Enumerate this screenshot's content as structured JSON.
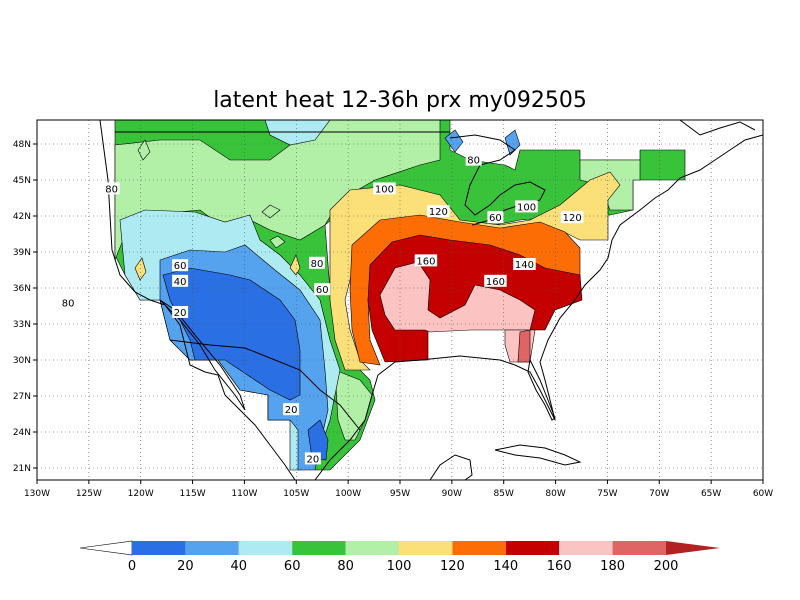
{
  "title": "latent heat 12-36h prx my092505",
  "map": {
    "lon_range": [
      -130,
      -60
    ],
    "lat_range": [
      20,
      50
    ],
    "lon_ticks": [
      {
        "value": -130,
        "label": "130W"
      },
      {
        "value": -125,
        "label": "125W"
      },
      {
        "value": -120,
        "label": "120W"
      },
      {
        "value": -115,
        "label": "115W"
      },
      {
        "value": -110,
        "label": "110W"
      },
      {
        "value": -105,
        "label": "105W"
      },
      {
        "value": -100,
        "label": "100W"
      },
      {
        "value": -95,
        "label": "95W"
      },
      {
        "value": -90,
        "label": "90W"
      },
      {
        "value": -85,
        "label": "85W"
      },
      {
        "value": -80,
        "label": "80W"
      },
      {
        "value": -75,
        "label": "75W"
      },
      {
        "value": -70,
        "label": "70W"
      },
      {
        "value": -65,
        "label": "65W"
      },
      {
        "value": -60,
        "label": "60W"
      }
    ],
    "lat_ticks": [
      {
        "value": 21,
        "label": "21N"
      },
      {
        "value": 24,
        "label": "24N"
      },
      {
        "value": 27,
        "label": "27N"
      },
      {
        "value": 30,
        "label": "30N"
      },
      {
        "value": 33,
        "label": "33N"
      },
      {
        "value": 36,
        "label": "36N"
      },
      {
        "value": 39,
        "label": "39N"
      },
      {
        "value": 42,
        "label": "42N"
      },
      {
        "value": 45,
        "label": "45N"
      },
      {
        "value": 48,
        "label": "48N"
      }
    ],
    "grid": "dotted"
  },
  "colorbar": {
    "levels": [
      0,
      20,
      40,
      60,
      80,
      100,
      120,
      140,
      160,
      180,
      200
    ],
    "labels": [
      "0",
      "20",
      "40",
      "60",
      "80",
      "100",
      "120",
      "140",
      "160",
      "180",
      "200"
    ],
    "colors": [
      "#ffffff",
      "#2a6fe3",
      "#55a2ef",
      "#aeeaf2",
      "#38c33a",
      "#b2f0a8",
      "#fbe07a",
      "#fc6d05",
      "#c50000",
      "#fcc3c3",
      "#df6464",
      "#b22222"
    ]
  },
  "contour_labels": [
    {
      "text": "80",
      "lon": -122.8,
      "lat": 44.3
    },
    {
      "text": "80",
      "lon": -127.0,
      "lat": 34.8
    },
    {
      "text": "60",
      "lon": -116.2,
      "lat": 37.9
    },
    {
      "text": "40",
      "lon": -116.2,
      "lat": 36.6
    },
    {
      "text": "20",
      "lon": -116.2,
      "lat": 34.0
    },
    {
      "text": "20",
      "lon": -105.5,
      "lat": 25.9
    },
    {
      "text": "20",
      "lon": -103.4,
      "lat": 21.8
    },
    {
      "text": "80",
      "lon": -103.0,
      "lat": 38.1
    },
    {
      "text": "60",
      "lon": -102.5,
      "lat": 35.9
    },
    {
      "text": "100",
      "lon": -96.5,
      "lat": 44.3
    },
    {
      "text": "80",
      "lon": -87.9,
      "lat": 46.7
    },
    {
      "text": "120",
      "lon": -91.3,
      "lat": 42.4
    },
    {
      "text": "60",
      "lon": -85.8,
      "lat": 41.9
    },
    {
      "text": "100",
      "lon": -82.8,
      "lat": 42.8
    },
    {
      "text": "120",
      "lon": -78.4,
      "lat": 41.9
    },
    {
      "text": "160",
      "lon": -92.5,
      "lat": 38.3
    },
    {
      "text": "140",
      "lon": -83.0,
      "lat": 38.0
    },
    {
      "text": "160",
      "lon": -85.8,
      "lat": 36.6
    }
  ]
}
